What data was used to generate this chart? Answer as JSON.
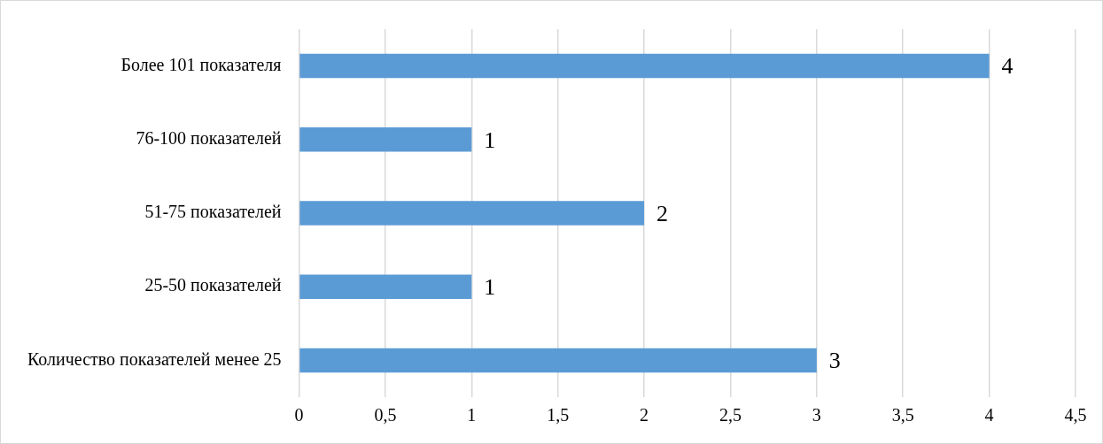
{
  "chart_data": {
    "type": "bar",
    "orientation": "horizontal",
    "categories": [
      "Более 101 показателя",
      "76-100 показателей",
      "51-75 показателей",
      "25-50 показателей",
      "Количество показателей менее 25"
    ],
    "values": [
      4,
      1,
      2,
      1,
      3
    ],
    "color": "#5b9bd5",
    "xlim": [
      0,
      4.5
    ],
    "xticks": [
      0,
      {
        "value": 0.5,
        "label": "0,5"
      },
      1,
      {
        "value": 1.5,
        "label": "1,5"
      },
      2,
      {
        "value": 2.5,
        "label": "2,5"
      },
      3,
      {
        "value": 3.5,
        "label": "3,5"
      },
      4,
      {
        "value": 4.5,
        "label": "4,5"
      }
    ],
    "grid": "x",
    "data_labels": true
  }
}
